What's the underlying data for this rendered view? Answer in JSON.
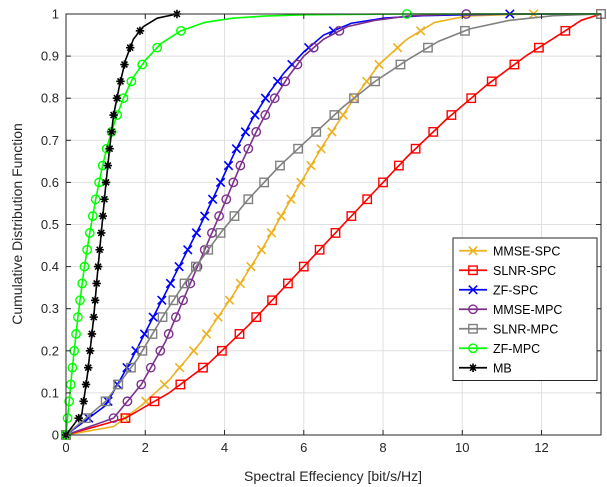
{
  "chart_data": {
    "type": "line",
    "title": "",
    "xlabel": "Spectral Effeciency [bit/s/Hz]",
    "ylabel": "Cumulative Distribution Function",
    "xlim": [
      0,
      13.5
    ],
    "ylim": [
      0,
      1
    ],
    "xticks": [
      0,
      2,
      4,
      6,
      8,
      10,
      12
    ],
    "yticks": [
      0,
      0.1,
      0.2,
      0.3,
      0.4,
      0.5,
      0.6,
      0.7,
      0.8,
      0.9,
      1
    ],
    "xtick_labels": [
      "0",
      "2",
      "4",
      "6",
      "8",
      "10",
      "12"
    ],
    "ytick_labels": [
      "0",
      "0.1",
      "0.2",
      "0.3",
      "0.4",
      "0.5",
      "0.6",
      "0.7",
      "0.8",
      "0.9",
      "1"
    ],
    "grid": true,
    "legend_position": "lower-right",
    "series": [
      {
        "name": "MMSE-SPC",
        "color": "#EDB120",
        "marker": "x",
        "x": [
          0,
          1.2,
          1.9,
          2.6,
          3.4,
          4.2,
          5.0,
          5.8,
          6.5,
          7.2,
          7.9,
          8.6,
          9.3,
          10.1,
          11.0,
          11.8,
          12.8,
          13.5
        ],
        "y": [
          0,
          0.02,
          0.07,
          0.13,
          0.22,
          0.33,
          0.45,
          0.58,
          0.69,
          0.79,
          0.88,
          0.94,
          0.98,
          0.995,
          0.998,
          1.0,
          1.0,
          1.0
        ]
      },
      {
        "name": "SLNR-SPC",
        "color": "#FF0000",
        "marker": "square",
        "x": [
          0,
          1.5,
          2.6,
          3.6,
          4.6,
          5.6,
          6.6,
          7.6,
          8.6,
          9.6,
          10.6,
          11.6,
          12.6,
          13.0,
          13.5
        ],
        "y": [
          0,
          0.04,
          0.1,
          0.17,
          0.26,
          0.36,
          0.46,
          0.56,
          0.66,
          0.75,
          0.83,
          0.9,
          0.96,
          0.985,
          1.0
        ]
      },
      {
        "name": "ZF-SPC",
        "color": "#0000FF",
        "marker": "x",
        "x": [
          0,
          1.0,
          1.6,
          2.2,
          2.8,
          3.4,
          3.9,
          4.3,
          4.7,
          5.1,
          5.5,
          6.0,
          6.5,
          7.2,
          8.0,
          9.0,
          10.0,
          11.2,
          12.0,
          13.5
        ],
        "y": [
          0,
          0.07,
          0.17,
          0.28,
          0.39,
          0.5,
          0.6,
          0.68,
          0.75,
          0.81,
          0.86,
          0.91,
          0.95,
          0.978,
          0.99,
          0.996,
          0.998,
          1.0,
          1.0,
          1.0
        ]
      },
      {
        "name": "MMSE-MPC",
        "color": "#7E2F8E",
        "marker": "circle",
        "x": [
          0,
          1.2,
          1.9,
          2.5,
          3.0,
          3.5,
          4.0,
          4.4,
          4.8,
          5.2,
          5.6,
          6.0,
          6.5,
          7.1,
          7.8,
          8.6,
          9.6,
          10.1,
          11.5,
          13.5
        ],
        "y": [
          0,
          0.04,
          0.12,
          0.22,
          0.33,
          0.44,
          0.55,
          0.64,
          0.72,
          0.79,
          0.85,
          0.9,
          0.94,
          0.97,
          0.985,
          0.995,
          0.999,
          1.0,
          1.0,
          1.0
        ]
      },
      {
        "name": "SLNR-MPC",
        "color": "#808080",
        "marker": "square",
        "x": [
          0,
          1.0,
          1.8,
          2.5,
          3.2,
          3.9,
          4.6,
          5.4,
          6.2,
          7.0,
          7.8,
          8.6,
          9.4,
          10.2,
          11.2,
          12.3,
          13.5
        ],
        "y": [
          0,
          0.08,
          0.18,
          0.29,
          0.39,
          0.48,
          0.56,
          0.64,
          0.71,
          0.78,
          0.84,
          0.89,
          0.935,
          0.965,
          0.985,
          0.996,
          1.0
        ]
      },
      {
        "name": "ZF-MPC",
        "color": "#00FF00",
        "marker": "circle",
        "x": [
          0,
          0.15,
          0.3,
          0.45,
          0.6,
          0.75,
          0.9,
          1.05,
          1.25,
          1.45,
          1.7,
          2.0,
          2.4,
          2.9,
          3.5,
          4.2,
          5.0,
          6.0,
          7.0,
          8.6,
          10.0,
          13.5
        ],
        "y": [
          0,
          0.15,
          0.28,
          0.39,
          0.48,
          0.56,
          0.63,
          0.69,
          0.75,
          0.8,
          0.85,
          0.89,
          0.93,
          0.96,
          0.98,
          0.99,
          0.995,
          0.998,
          0.999,
          1.0,
          1.0,
          1.0
        ]
      },
      {
        "name": "MB",
        "color": "#000000",
        "marker": "star",
        "x": [
          0,
          0.4,
          0.55,
          0.7,
          0.8,
          0.9,
          1.0,
          1.1,
          1.2,
          1.35,
          1.5,
          1.7,
          1.95,
          2.3,
          2.8
        ],
        "y": [
          0,
          0.05,
          0.15,
          0.28,
          0.39,
          0.49,
          0.59,
          0.68,
          0.76,
          0.83,
          0.89,
          0.94,
          0.97,
          0.99,
          1.0
        ]
      }
    ]
  }
}
